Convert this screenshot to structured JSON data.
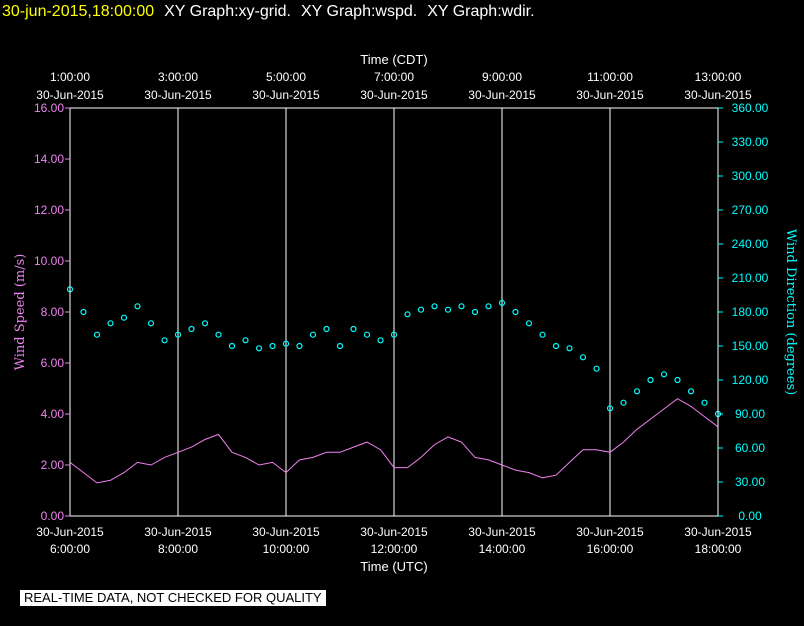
{
  "header": {
    "timestamp": "30-jun-2015,18:00:00",
    "graphs": [
      "XY Graph:xy-grid.",
      "XY Graph:wspd.",
      "XY Graph:wdir."
    ]
  },
  "disclaimer": "REAL-TIME DATA, NOT CHECKED FOR QUALITY",
  "colors": {
    "speed": "#ee82ee",
    "direction": "#00ffff",
    "grid": "#ffffff",
    "text": "#ffffff",
    "timestamp": "#ffff00"
  },
  "chart_data": {
    "type": "line",
    "top_axis": {
      "label": "Time (CDT)",
      "ticks": [
        {
          "time": "1:00:00",
          "date": "30-Jun-2015"
        },
        {
          "time": "3:00:00",
          "date": "30-Jun-2015"
        },
        {
          "time": "5:00:00",
          "date": "30-Jun-2015"
        },
        {
          "time": "7:00:00",
          "date": "30-Jun-2015"
        },
        {
          "time": "9:00:00",
          "date": "30-Jun-2015"
        },
        {
          "time": "11:00:00",
          "date": "30-Jun-2015"
        },
        {
          "time": "13:00:00",
          "date": "30-Jun-2015"
        }
      ]
    },
    "bottom_axis": {
      "label": "Time (UTC)",
      "ticks": [
        {
          "date": "30-Jun-2015",
          "time": "6:00:00"
        },
        {
          "date": "30-Jun-2015",
          "time": "8:00:00"
        },
        {
          "date": "30-Jun-2015",
          "time": "10:00:00"
        },
        {
          "date": "30-Jun-2015",
          "time": "12:00:00"
        },
        {
          "date": "30-Jun-2015",
          "time": "14:00:00"
        },
        {
          "date": "30-Jun-2015",
          "time": "16:00:00"
        },
        {
          "date": "30-Jun-2015",
          "time": "18:00:00"
        }
      ]
    },
    "xlim_utc_hours": [
      6,
      18
    ],
    "left_axis": {
      "label": "Wind Speed (m/s)",
      "ylim": [
        0,
        16
      ],
      "ticks": [
        "0.00",
        "2.00",
        "4.00",
        "6.00",
        "8.00",
        "10.00",
        "12.00",
        "14.00",
        "16.00"
      ]
    },
    "right_axis": {
      "label": "Wind Direction (degrees)",
      "ylim": [
        0,
        360
      ],
      "ticks": [
        "0.00",
        "30.00",
        "60.00",
        "90.00",
        "120.00",
        "150.00",
        "180.00",
        "210.00",
        "240.00",
        "270.00",
        "300.00",
        "330.00",
        "360.00"
      ]
    },
    "grid": "vertical lines at top/bottom tick times",
    "series": [
      {
        "name": "wspd",
        "style": "line",
        "x_utc_hours": [
          6.0,
          6.25,
          6.5,
          6.75,
          7.0,
          7.25,
          7.5,
          7.75,
          8.0,
          8.25,
          8.5,
          8.75,
          9.0,
          9.25,
          9.5,
          9.75,
          10.0,
          10.25,
          10.5,
          10.75,
          11.0,
          11.25,
          11.5,
          11.75,
          12.0,
          12.25,
          12.5,
          12.75,
          13.0,
          13.25,
          13.5,
          13.75,
          14.0,
          14.25,
          14.5,
          14.75,
          15.0,
          15.25,
          15.5,
          15.75,
          16.0,
          16.25,
          16.5,
          16.75,
          17.0,
          17.25,
          17.5,
          17.75,
          18.0
        ],
        "values": [
          2.1,
          1.7,
          1.3,
          1.4,
          1.7,
          2.1,
          2.0,
          2.3,
          2.5,
          2.7,
          3.0,
          3.2,
          2.5,
          2.3,
          2.0,
          2.1,
          1.7,
          2.2,
          2.3,
          2.5,
          2.5,
          2.7,
          2.9,
          2.6,
          1.9,
          1.9,
          2.3,
          2.8,
          3.1,
          2.9,
          2.3,
          2.2,
          2.0,
          1.8,
          1.7,
          1.5,
          1.6,
          2.1,
          2.6,
          2.6,
          2.5,
          2.9,
          3.4,
          3.8,
          4.2,
          4.6,
          4.3,
          3.9,
          3.5
        ]
      },
      {
        "name": "wdir",
        "style": "points",
        "x_utc_hours": [
          6.0,
          6.25,
          6.5,
          6.75,
          7.0,
          7.25,
          7.5,
          7.75,
          8.0,
          8.25,
          8.5,
          8.75,
          9.0,
          9.25,
          9.5,
          9.75,
          10.0,
          10.25,
          10.5,
          10.75,
          11.0,
          11.25,
          11.5,
          11.75,
          12.0,
          12.25,
          12.5,
          12.75,
          13.0,
          13.25,
          13.5,
          13.75,
          14.0,
          14.25,
          14.5,
          14.75,
          15.0,
          15.25,
          15.5,
          15.75,
          16.0,
          16.25,
          16.5,
          16.75,
          17.0,
          17.25,
          17.5,
          17.75,
          18.0
        ],
        "values": [
          200,
          180,
          160,
          170,
          175,
          185,
          170,
          155,
          160,
          165,
          170,
          160,
          150,
          155,
          148,
          150,
          152,
          150,
          160,
          165,
          150,
          165,
          160,
          155,
          160,
          178,
          182,
          185,
          182,
          185,
          180,
          185,
          188,
          180,
          170,
          160,
          150,
          148,
          140,
          130,
          95,
          100,
          110,
          120,
          125,
          120,
          110,
          100,
          90
        ]
      }
    ]
  }
}
